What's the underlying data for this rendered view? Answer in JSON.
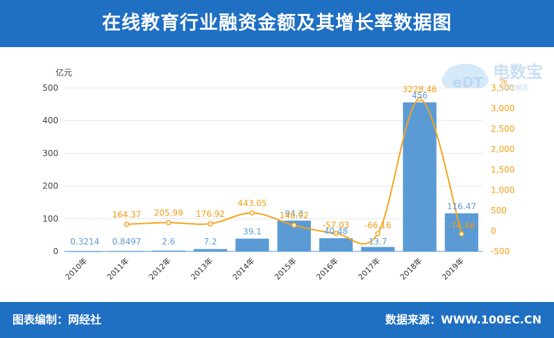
{
  "header": {
    "title": "在线教育行业融资金额及其增长率数据图"
  },
  "footer": {
    "left": "图表编制：网经社",
    "right": "数据来源：WWW.100EC.CN"
  },
  "logo": {
    "main": "电数宝",
    "sub": "大数据库",
    "badge": "eDT"
  },
  "colors": {
    "header_bg": "#1f6fc3",
    "bar": "#5b9bd5",
    "line": "#f5a31a",
    "bar_label": "#5b9bd5",
    "line_label": "#f39c12"
  },
  "chart_data": {
    "type": "bar",
    "categories": [
      "2010年",
      "2011年",
      "2012年",
      "2013年",
      "2014年",
      "2015年",
      "2016年",
      "2017年",
      "2018年",
      "2019年"
    ],
    "ylabel": "亿元",
    "y2label": "%",
    "ylim": [
      0,
      500
    ],
    "y2lim": [
      -500,
      3500
    ],
    "yticks": [
      "0",
      "100",
      "200",
      "300",
      "400",
      "500"
    ],
    "y2ticks": [
      "-500",
      "0",
      "500",
      "1,000",
      "1,500",
      "2,000",
      "2,500",
      "3,000",
      "3,500"
    ],
    "series": [
      {
        "type": "bar",
        "values": [
          0.3214,
          0.8497,
          2.6,
          7.2,
          39.1,
          94.3,
          40.48,
          13.7,
          456,
          116.47
        ],
        "labels": [
          "0.3214",
          "0.8497",
          "2.6",
          "7.2",
          "39.1",
          "94.3",
          "40.48",
          "13.7",
          "456",
          "116.47"
        ]
      },
      {
        "type": "line",
        "axis": "right",
        "values": [
          null,
          164.37,
          205.99,
          176.92,
          443.05,
          140.92,
          -57.03,
          -66.16,
          3228.46,
          -74.46
        ],
        "labels": [
          "",
          "164.37",
          "205.99",
          "176.92",
          "443.05",
          "140.92",
          "-57.03",
          "-66.16",
          "3228.46",
          "-74.46"
        ]
      }
    ]
  }
}
